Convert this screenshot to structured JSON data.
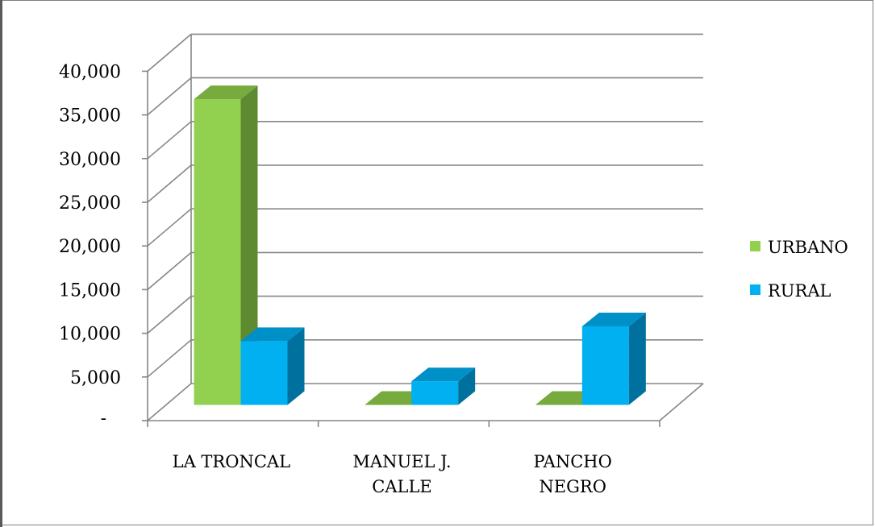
{
  "chart_data": {
    "type": "bar",
    "title": "",
    "xlabel": "",
    "ylabel": "",
    "categories": [
      [
        "LA TRONCAL"
      ],
      [
        "MANUEL J.",
        "CALLE"
      ],
      [
        "PANCHO",
        "NEGRO"
      ]
    ],
    "series": [
      {
        "name": "URBANO",
        "values": [
          35000,
          0,
          0
        ],
        "color": "#92d050",
        "side_color": "#5e8a32",
        "top_color": "#77ab3e"
      },
      {
        "name": "RURAL",
        "values": [
          7300,
          2700,
          9000
        ],
        "color": "#00b0f0",
        "side_color": "#00719e",
        "top_color": "#0090c8"
      }
    ],
    "ylim": [
      0,
      40000
    ],
    "ytick_values": [
      0,
      5000,
      10000,
      15000,
      20000,
      25000,
      30000,
      35000,
      40000
    ],
    "ytick_labels": [
      "-",
      "5,000",
      "10,000",
      "15,000",
      "20,000",
      "25,000",
      "30,000",
      "35,000",
      "40,000"
    ],
    "grid": true,
    "style": "3d-clustered-column",
    "legend_position": "right"
  }
}
